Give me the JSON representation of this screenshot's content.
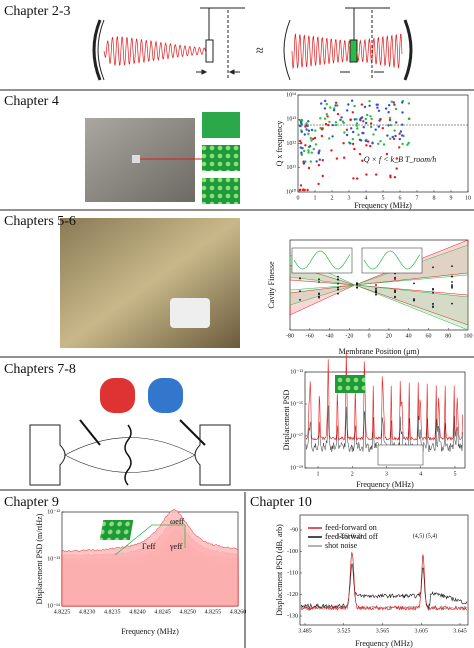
{
  "section_1": {
    "title": "Chapter 2-3",
    "approx": "≈"
  },
  "section_2": {
    "title": "Chapter 4",
    "x_label": "Frequency (MHz)",
    "y_label": "Q x frequency",
    "x_ticks": [
      "0",
      "1",
      "2",
      "3",
      "4",
      "5",
      "6",
      "7",
      "8",
      "9",
      "10"
    ],
    "y_ticks": [
      "10¹⁴",
      "10¹³",
      "10¹²",
      "10¹¹",
      "10¹⁰"
    ],
    "annotation": "Q × f < k_B T_room/h"
  },
  "section_3": {
    "title": "Chapters 5-6",
    "x_label": "Membrane Position (μm)",
    "y_label": "Cavity Finesse",
    "x_ticks": [
      "-80",
      "-60",
      "-40",
      "-20",
      "0",
      "20",
      "40",
      "60",
      "80",
      "100"
    ]
  },
  "section_4": {
    "title": "Chapters 7-8",
    "x_label": "Frequency (MHz)",
    "y_label": "Displacement PSD",
    "x_ticks": [
      "1",
      "2",
      "3",
      "4",
      "5"
    ],
    "y_ticks": [
      "10⁻¹³",
      "10⁻¹⁵",
      "10⁻¹⁷",
      "10⁻¹⁹"
    ]
  },
  "section_5": {
    "title": "Chapter 9",
    "x_label": "Frequency (MHz)",
    "y_label": "Displacement PSD (m/rtHz)",
    "x_ticks": [
      "4.8225",
      "4.8230",
      "4.8235",
      "4.8240",
      "4.8245",
      "4.8250",
      "4.8255",
      "4.8260"
    ],
    "y_ticks": [
      "10⁻¹²",
      "10⁻¹³",
      "10⁻¹⁴"
    ],
    "annotations": [
      "ωeff",
      "Γeff",
      "γeff"
    ]
  },
  "section_6": {
    "title": "Chapter 10",
    "x_label": "Frequency (MHz)",
    "y_label": "Displacement PSD (dB, arb)",
    "x_ticks": [
      "3.485",
      "3.525",
      "3.565",
      "3.605",
      "3.645"
    ],
    "y_ticks": [
      "-90",
      "-100",
      "-110",
      "-120",
      "-130"
    ],
    "legend": [
      {
        "name": "feed-forward on",
        "color": "#e41a1c"
      },
      {
        "name": "feed-forward off",
        "color": "#111111"
      },
      {
        "name": "shot noise",
        "color": "#999999"
      }
    ],
    "peak_labels": [
      "(2,6) (6,2)",
      "(4,5) (5,4)"
    ]
  }
}
